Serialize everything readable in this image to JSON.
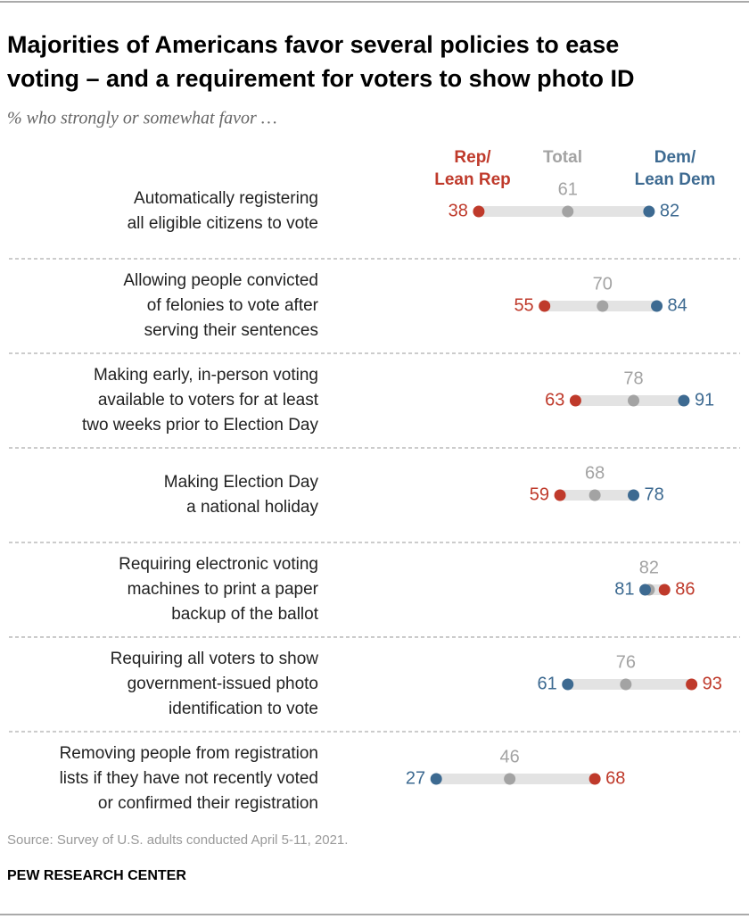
{
  "chart_data": {
    "type": "dot",
    "title": [
      "Majorities of Americans favor several policies to ease",
      "voting – and a requirement for voters to show photo ID"
    ],
    "subtitle": "% who strongly or somewhat favor …",
    "categories": [
      [
        "Automatically registering",
        "all eligible citizens to vote"
      ],
      [
        "Allowing people convicted",
        "of felonies to vote after",
        "serving their sentences"
      ],
      [
        "Making early, in-person voting",
        "available to voters for at least",
        "two weeks prior to Election Day"
      ],
      [
        "Making Election Day",
        "a national holiday"
      ],
      [
        "Requiring electronic voting",
        "machines to print a paper",
        "backup of the ballot"
      ],
      [
        "Requiring all voters to show",
        "government-issued photo",
        "identification to vote"
      ],
      [
        "Removing people from registration",
        "lists if they have not recently voted",
        "or confirmed their registration"
      ]
    ],
    "series": [
      {
        "name": [
          "Rep/",
          "Lean Rep"
        ],
        "color": "#bf3a2b",
        "values": [
          38,
          55,
          63,
          59,
          86,
          93,
          68
        ]
      },
      {
        "name": [
          "Total"
        ],
        "color": "#a3a3a3",
        "values": [
          61,
          70,
          78,
          68,
          82,
          76,
          46
        ]
      },
      {
        "name": [
          "Dem/",
          "Lean Dem"
        ],
        "color": "#3d6a91",
        "values": [
          82,
          84,
          91,
          78,
          81,
          61,
          27
        ]
      }
    ],
    "source": "Source: Survey of U.S. adults conducted April 5-11, 2021.",
    "credit": "PEW RESEARCH CENTER"
  }
}
